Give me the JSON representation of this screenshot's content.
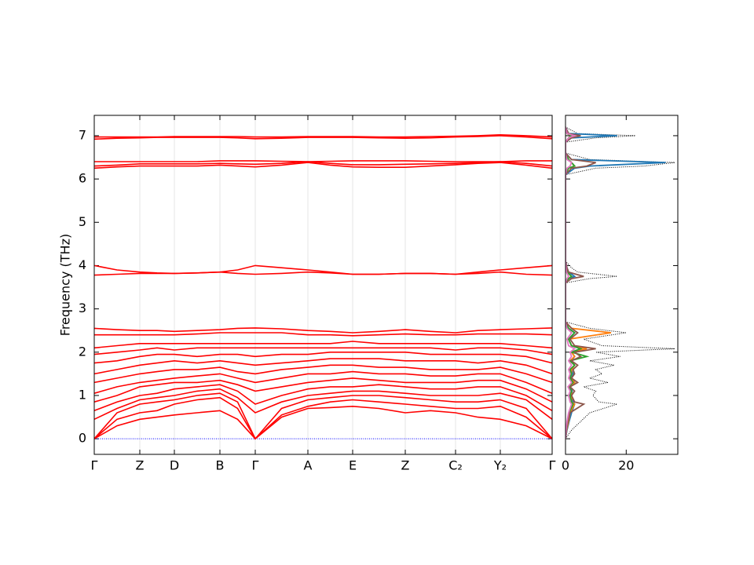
{
  "chart_data": [
    {
      "type": "bands",
      "ylabel": "Frequency (THz)",
      "color": "#ff0000",
      "x": [
        0,
        0.29,
        0.58,
        0.8,
        1.02,
        1.31,
        1.6,
        1.825,
        2.05,
        2.385,
        2.72,
        3.005,
        3.29,
        3.625,
        3.96,
        4.28,
        4.6,
        4.885,
        5.17,
        5.5,
        5.83
      ],
      "xlim": [
        0,
        5.83
      ],
      "xticks": [
        {
          "value": 0,
          "label": "Γ"
        },
        {
          "value": 0.58,
          "label": "Z"
        },
        {
          "value": 1.02,
          "label": "D"
        },
        {
          "value": 1.6,
          "label": "B"
        },
        {
          "value": 2.05,
          "label": "Γ"
        },
        {
          "value": 2.72,
          "label": "A"
        },
        {
          "value": 3.29,
          "label": "E"
        },
        {
          "value": 3.96,
          "label": "Z"
        },
        {
          "value": 4.6,
          "label": "C₂"
        },
        {
          "value": 5.17,
          "label": "Y₂"
        },
        {
          "value": 5.83,
          "label": "Γ"
        }
      ],
      "ylim": [
        -0.36,
        7.47
      ],
      "yticks": [
        0,
        1,
        2,
        3,
        4,
        5,
        6,
        7
      ],
      "hline": 0,
      "hline_color": "#0000ff",
      "bands": [
        [
          0,
          0.3,
          0.45,
          0.5,
          0.55,
          0.6,
          0.65,
          0.45,
          0,
          0.5,
          0.7,
          0.72,
          0.75,
          0.7,
          0.6,
          0.65,
          0.6,
          0.5,
          0.45,
          0.3,
          0
        ],
        [
          0,
          0.45,
          0.6,
          0.65,
          0.8,
          0.9,
          0.95,
          0.7,
          0,
          0.55,
          0.75,
          0.85,
          0.9,
          0.85,
          0.8,
          0.75,
          0.7,
          0.7,
          0.75,
          0.5,
          0
        ],
        [
          0,
          0.6,
          0.8,
          0.85,
          0.9,
          1.0,
          1.05,
          0.85,
          0,
          0.7,
          0.9,
          0.95,
          1.0,
          1.0,
          0.95,
          0.9,
          0.85,
          0.85,
          0.9,
          0.7,
          0
        ],
        [
          0.45,
          0.7,
          0.9,
          0.95,
          1.0,
          1.1,
          1.15,
          0.95,
          0.6,
          0.85,
          1.0,
          1.05,
          1.1,
          1.1,
          1.05,
          1.0,
          1.0,
          1.0,
          1.05,
          0.9,
          0.45
        ],
        [
          0.65,
          0.85,
          1.0,
          1.05,
          1.15,
          1.2,
          1.25,
          1.1,
          0.8,
          1.0,
          1.15,
          1.2,
          1.2,
          1.25,
          1.2,
          1.15,
          1.15,
          1.2,
          1.2,
          1.0,
          0.65
        ],
        [
          0.85,
          1.0,
          1.2,
          1.25,
          1.3,
          1.3,
          1.35,
          1.25,
          1.1,
          1.2,
          1.3,
          1.35,
          1.4,
          1.35,
          1.3,
          1.3,
          1.3,
          1.35,
          1.35,
          1.15,
          0.85
        ],
        [
          1.05,
          1.2,
          1.3,
          1.35,
          1.4,
          1.45,
          1.5,
          1.4,
          1.3,
          1.4,
          1.5,
          1.5,
          1.55,
          1.5,
          1.5,
          1.45,
          1.45,
          1.5,
          1.5,
          1.3,
          1.05
        ],
        [
          1.3,
          1.4,
          1.5,
          1.55,
          1.6,
          1.6,
          1.65,
          1.55,
          1.5,
          1.6,
          1.65,
          1.7,
          1.7,
          1.65,
          1.65,
          1.6,
          1.6,
          1.6,
          1.65,
          1.5,
          1.3
        ],
        [
          1.5,
          1.6,
          1.7,
          1.75,
          1.8,
          1.75,
          1.8,
          1.75,
          1.7,
          1.75,
          1.8,
          1.85,
          1.85,
          1.85,
          1.8,
          1.8,
          1.8,
          1.75,
          1.8,
          1.7,
          1.5
        ],
        [
          1.75,
          1.8,
          1.9,
          1.95,
          1.95,
          1.9,
          1.95,
          1.95,
          1.9,
          1.95,
          1.95,
          2.0,
          2.0,
          2.0,
          2.0,
          1.95,
          1.95,
          1.95,
          1.95,
          1.9,
          1.75
        ],
        [
          1.95,
          2.0,
          2.05,
          2.1,
          2.05,
          2.1,
          2.1,
          2.1,
          2.1,
          2.1,
          2.1,
          2.1,
          2.1,
          2.1,
          2.1,
          2.1,
          2.05,
          2.1,
          2.1,
          2.05,
          1.95
        ],
        [
          2.1,
          2.15,
          2.2,
          2.2,
          2.2,
          2.2,
          2.2,
          2.2,
          2.2,
          2.2,
          2.2,
          2.2,
          2.25,
          2.2,
          2.2,
          2.2,
          2.2,
          2.2,
          2.2,
          2.15,
          2.1
        ],
        [
          2.4,
          2.4,
          2.4,
          2.4,
          2.4,
          2.42,
          2.45,
          2.45,
          2.45,
          2.45,
          2.4,
          2.4,
          2.38,
          2.4,
          2.42,
          2.4,
          2.4,
          2.42,
          2.42,
          2.42,
          2.4
        ],
        [
          2.55,
          2.52,
          2.5,
          2.5,
          2.48,
          2.5,
          2.52,
          2.55,
          2.56,
          2.54,
          2.5,
          2.48,
          2.45,
          2.48,
          2.52,
          2.48,
          2.45,
          2.5,
          2.52,
          2.54,
          2.56
        ],
        [
          3.78,
          3.8,
          3.82,
          3.82,
          3.82,
          3.83,
          3.85,
          3.9,
          4.0,
          3.95,
          3.9,
          3.85,
          3.8,
          3.8,
          3.82,
          3.82,
          3.8,
          3.85,
          3.9,
          3.95,
          4.0
        ],
        [
          4.0,
          3.9,
          3.85,
          3.83,
          3.82,
          3.83,
          3.85,
          3.82,
          3.8,
          3.82,
          3.85,
          3.83,
          3.8,
          3.8,
          3.82,
          3.82,
          3.8,
          3.82,
          3.85,
          3.8,
          3.78
        ],
        [
          6.25,
          6.28,
          6.3,
          6.3,
          6.3,
          6.3,
          6.32,
          6.3,
          6.28,
          6.32,
          6.38,
          6.32,
          6.28,
          6.27,
          6.27,
          6.3,
          6.33,
          6.36,
          6.38,
          6.32,
          6.25
        ],
        [
          6.3,
          6.32,
          6.35,
          6.35,
          6.35,
          6.35,
          6.36,
          6.35,
          6.34,
          6.36,
          6.4,
          6.36,
          6.33,
          6.33,
          6.34,
          6.35,
          6.36,
          6.38,
          6.4,
          6.36,
          6.3
        ],
        [
          6.4,
          6.4,
          6.4,
          6.4,
          6.4,
          6.4,
          6.42,
          6.42,
          6.42,
          6.41,
          6.4,
          6.41,
          6.42,
          6.42,
          6.42,
          6.41,
          6.4,
          6.4,
          6.4,
          6.42,
          6.42
        ],
        [
          6.92,
          6.94,
          6.95,
          6.96,
          6.96,
          6.96,
          6.96,
          6.95,
          6.93,
          6.94,
          6.96,
          6.96,
          6.96,
          6.95,
          6.94,
          6.95,
          6.97,
          6.98,
          7.0,
          6.97,
          6.93
        ],
        [
          6.97,
          6.97,
          6.97,
          6.97,
          6.98,
          6.98,
          6.98,
          6.98,
          6.97,
          6.97,
          6.98,
          6.98,
          6.98,
          6.97,
          6.97,
          6.98,
          6.99,
          7.0,
          7.02,
          7.0,
          6.97
        ]
      ]
    },
    {
      "type": "dos",
      "y": [
        0,
        0.2,
        0.4,
        0.6,
        0.8,
        0.85,
        1.0,
        1.1,
        1.2,
        1.3,
        1.4,
        1.5,
        1.6,
        1.7,
        1.8,
        1.9,
        2.0,
        2.08,
        2.15,
        2.3,
        2.45,
        2.55,
        2.7,
        3.6,
        3.7,
        3.75,
        3.85,
        3.95,
        4.1,
        6.1,
        6.25,
        6.3,
        6.38,
        6.45,
        6.6,
        6.85,
        6.95,
        7.0,
        7.05,
        7.2
      ],
      "xlim": [
        0,
        37
      ],
      "xticks": [
        0,
        20
      ],
      "series": [
        {
          "color": "#000000",
          "dotted": true,
          "values": [
            0,
            2,
            5,
            8,
            17,
            11,
            9,
            10,
            6,
            14,
            8,
            12,
            10,
            16,
            8,
            18,
            10,
            36,
            12,
            6,
            20,
            8,
            0,
            0,
            8,
            17,
            4,
            2,
            0,
            0,
            10,
            26,
            36,
            8,
            0,
            0,
            10,
            23,
            4,
            0
          ]
        },
        {
          "color": "#1f77b4",
          "values": [
            0,
            0.5,
            1.2,
            2,
            3,
            2.5,
            2,
            2.2,
            1.5,
            3,
            2,
            2.5,
            2,
            3,
            2,
            3,
            2,
            5,
            2,
            1,
            3,
            1,
            0,
            0,
            1,
            3,
            1,
            0.5,
            0,
            0,
            3,
            8,
            33,
            2,
            0,
            0,
            2,
            17,
            1,
            0
          ]
        },
        {
          "color": "#ff7f0e",
          "values": [
            0,
            0.4,
            1,
            1.5,
            3,
            2,
            2,
            2,
            1,
            3,
            1.5,
            2,
            2,
            3,
            1.5,
            3,
            2,
            7,
            2,
            1,
            15,
            2,
            0,
            0,
            1,
            2,
            0.5,
            0.3,
            0,
            0,
            1,
            3,
            2,
            1,
            0,
            0,
            1,
            2,
            0.5,
            0
          ]
        },
        {
          "color": "#2ca02c",
          "values": [
            0,
            0.3,
            0.8,
            1.2,
            2.5,
            2,
            1.5,
            2,
            1,
            2.5,
            1.5,
            2,
            1.5,
            3,
            1.5,
            7,
            2,
            5,
            2,
            1,
            3,
            1,
            0,
            0,
            1,
            2,
            0.5,
            0.3,
            0,
            0,
            1,
            3,
            2,
            1,
            0,
            0,
            1,
            2,
            0.5,
            0
          ]
        },
        {
          "color": "#8c564b",
          "values": [
            0,
            0.3,
            0.8,
            1.5,
            6,
            3,
            2,
            3,
            1.5,
            4,
            2,
            3,
            2.5,
            4,
            2,
            5,
            3,
            10,
            3,
            1.5,
            4,
            2,
            0,
            0,
            2,
            6,
            1,
            0.5,
            0,
            0,
            2,
            7,
            10,
            2,
            0,
            0,
            2,
            5,
            1,
            0
          ]
        },
        {
          "color": "#e377c2",
          "values": [
            0,
            0.2,
            0.5,
            1,
            2,
            1.5,
            1,
            1.5,
            0.8,
            2,
            1,
            1.5,
            1,
            2,
            1,
            2,
            1.5,
            3,
            1,
            0.5,
            2,
            0.5,
            0,
            0,
            0.5,
            1,
            0.3,
            0.2,
            0,
            0,
            0.5,
            1.5,
            2,
            0.5,
            0,
            0,
            1,
            3,
            0.5,
            0
          ]
        }
      ]
    }
  ]
}
